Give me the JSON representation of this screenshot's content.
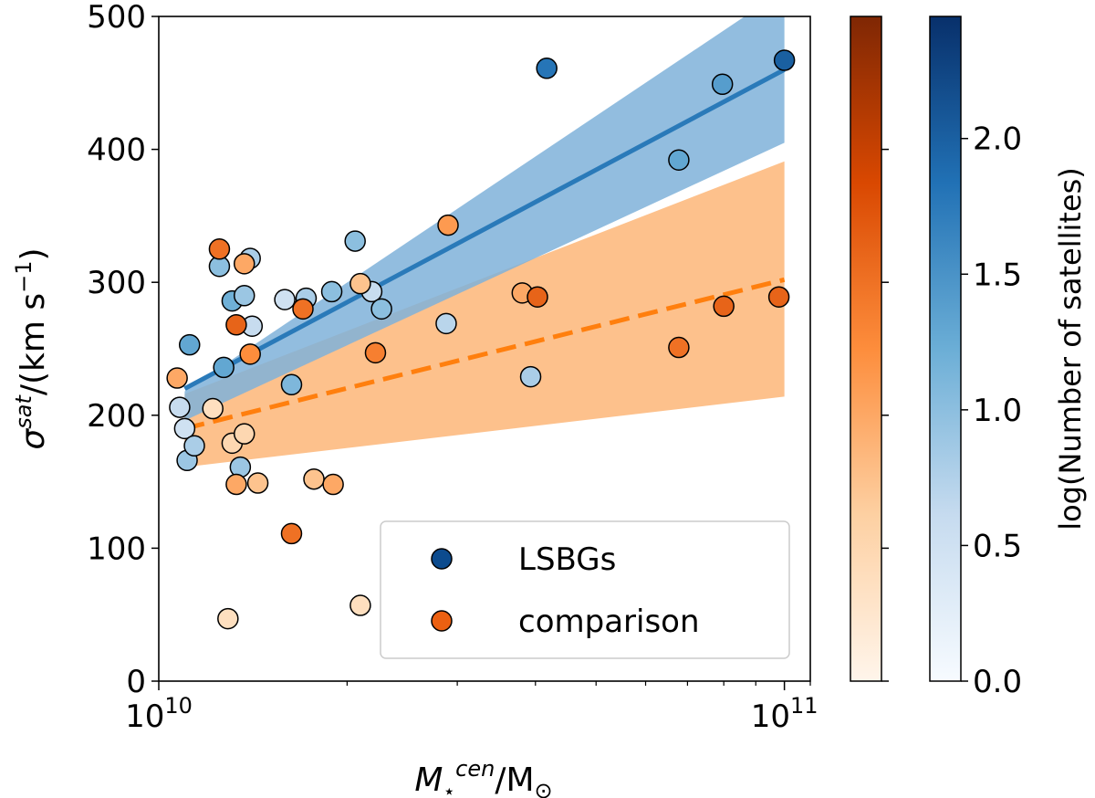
{
  "chart_data": {
    "type": "scatter",
    "title": "",
    "xlabel_parts": {
      "symbol": "M",
      "sub": "⋆",
      "sup": "cen",
      "slash": "/M",
      "odot_sub": "⊙"
    },
    "ylabel_parts": {
      "symbol": "σ",
      "sup": "sat",
      "unit_a": "/(km s",
      "unit_sup": "−1",
      "unit_b": ")"
    },
    "xscale": "log",
    "xlim": [
      10000000000,
      110000000000
    ],
    "ylim": [
      0,
      500
    ],
    "x_major_ticks": [
      {
        "value": 10000000000,
        "base": "10",
        "exp": "10"
      },
      {
        "value": 100000000000,
        "base": "10",
        "exp": "11"
      }
    ],
    "y_ticks": [
      {
        "value": 0,
        "label": "0"
      },
      {
        "value": 100,
        "label": "100"
      },
      {
        "value": 200,
        "label": "200"
      },
      {
        "value": 300,
        "label": "300"
      },
      {
        "value": 400,
        "label": "400"
      },
      {
        "value": 500,
        "label": "500"
      }
    ],
    "legend": {
      "location": "lower-right",
      "entries": [
        {
          "label": "LSBGs",
          "color": "#0c4b8e"
        },
        {
          "label": "comparison",
          "color": "#ec6011"
        }
      ]
    },
    "series": [
      {
        "name": "LSBGs",
        "colormap": "Blues",
        "fit": {
          "style": "solid",
          "color": "#2a7ab9",
          "x": [
            11000000000,
            100000000000
          ],
          "y": [
            220,
            460
          ]
        },
        "band": {
          "color": "#7fb2d9",
          "x": [
            11000000000,
            100000000000
          ],
          "lower": [
            196,
            405
          ],
          "upper": [
            218,
            520
          ]
        },
        "points": [
          {
            "x": 10800000000,
            "y": 206,
            "c": 0.6
          },
          {
            "x": 11000000000,
            "y": 190,
            "c": 0.5
          },
          {
            "x": 11100000000,
            "y": 166,
            "c": 0.9
          },
          {
            "x": 11200000000,
            "y": 253,
            "c": 1.3
          },
          {
            "x": 11400000000,
            "y": 177,
            "c": 0.8
          },
          {
            "x": 12500000000,
            "y": 312,
            "c": 1.0
          },
          {
            "x": 12700000000,
            "y": 236,
            "c": 1.3
          },
          {
            "x": 13100000000,
            "y": 286,
            "c": 1.2
          },
          {
            "x": 13500000000,
            "y": 161,
            "c": 0.9
          },
          {
            "x": 13700000000,
            "y": 290,
            "c": 0.9
          },
          {
            "x": 14000000000,
            "y": 318,
            "c": 0.8
          },
          {
            "x": 14100000000,
            "y": 267,
            "c": 0.6
          },
          {
            "x": 15900000000,
            "y": 287,
            "c": 0.5
          },
          {
            "x": 16300000000,
            "y": 223,
            "c": 1.1
          },
          {
            "x": 17200000000,
            "y": 288,
            "c": 0.8
          },
          {
            "x": 18900000000,
            "y": 293,
            "c": 1.0
          },
          {
            "x": 20600000000,
            "y": 331,
            "c": 1.0
          },
          {
            "x": 21900000000,
            "y": 293,
            "c": 0.6
          },
          {
            "x": 22700000000,
            "y": 280,
            "c": 1.0
          },
          {
            "x": 28800000000,
            "y": 269,
            "c": 0.7
          },
          {
            "x": 39300000000,
            "y": 229,
            "c": 0.8
          },
          {
            "x": 41700000000,
            "y": 461,
            "c": 1.8
          },
          {
            "x": 67800000000,
            "y": 392,
            "c": 1.3
          },
          {
            "x": 79600000000,
            "y": 449,
            "c": 1.4
          },
          {
            "x": 100000000000,
            "y": 467,
            "c": 2.0
          }
        ]
      },
      {
        "name": "comparison",
        "colormap": "Oranges",
        "fit": {
          "style": "dashed",
          "color": "#ff7f0e",
          "x": [
            11000000000,
            100000000000
          ],
          "y": [
            190,
            302
          ]
        },
        "band": {
          "color": "#fdb678",
          "x": [
            11000000000,
            100000000000
          ],
          "lower": [
            161,
            214
          ],
          "upper": [
            216,
            391
          ]
        },
        "points": [
          {
            "x": 10700000000,
            "y": 228,
            "c": 0.4
          },
          {
            "x": 12200000000,
            "y": 205,
            "c": 0.15
          },
          {
            "x": 12500000000,
            "y": 325,
            "c": 0.6
          },
          {
            "x": 12900000000,
            "y": 47,
            "c": 0.15
          },
          {
            "x": 13100000000,
            "y": 179,
            "c": 0.2
          },
          {
            "x": 13300000000,
            "y": 148,
            "c": 0.4
          },
          {
            "x": 13300000000,
            "y": 268,
            "c": 0.65
          },
          {
            "x": 13700000000,
            "y": 314,
            "c": 0.4
          },
          {
            "x": 13700000000,
            "y": 186,
            "c": 0.2
          },
          {
            "x": 14000000000,
            "y": 246,
            "c": 0.5
          },
          {
            "x": 14400000000,
            "y": 149,
            "c": 0.3
          },
          {
            "x": 16300000000,
            "y": 111,
            "c": 0.6
          },
          {
            "x": 17000000000,
            "y": 280,
            "c": 0.6
          },
          {
            "x": 17700000000,
            "y": 152,
            "c": 0.3
          },
          {
            "x": 19000000000,
            "y": 148,
            "c": 0.4
          },
          {
            "x": 21000000000,
            "y": 299,
            "c": 0.3
          },
          {
            "x": 21000000000,
            "y": 57,
            "c": 0.15
          },
          {
            "x": 22200000000,
            "y": 247,
            "c": 0.55
          },
          {
            "x": 29000000000,
            "y": 343,
            "c": 0.45
          },
          {
            "x": 38100000000,
            "y": 292,
            "c": 0.4
          },
          {
            "x": 40300000000,
            "y": 289,
            "c": 0.65
          },
          {
            "x": 67800000000,
            "y": 251,
            "c": 0.6
          },
          {
            "x": 80000000000,
            "y": 282,
            "c": 0.65
          },
          {
            "x": 98000000000,
            "y": 289,
            "c": 0.65
          }
        ]
      }
    ],
    "colorbars": [
      {
        "name": "comparison",
        "colormap": "Oranges",
        "range": [
          0,
          1
        ]
      },
      {
        "name": "LSBGs",
        "colormap": "Blues",
        "range": [
          0,
          2.45
        ],
        "label": "log(Number of satellites)",
        "ticks": [
          {
            "value": 0.0,
            "label": "0.0"
          },
          {
            "value": 0.5,
            "label": "0.5"
          },
          {
            "value": 1.0,
            "label": "1.0"
          },
          {
            "value": 1.5,
            "label": "1.5"
          },
          {
            "value": 2.0,
            "label": "2.0"
          }
        ]
      }
    ]
  }
}
